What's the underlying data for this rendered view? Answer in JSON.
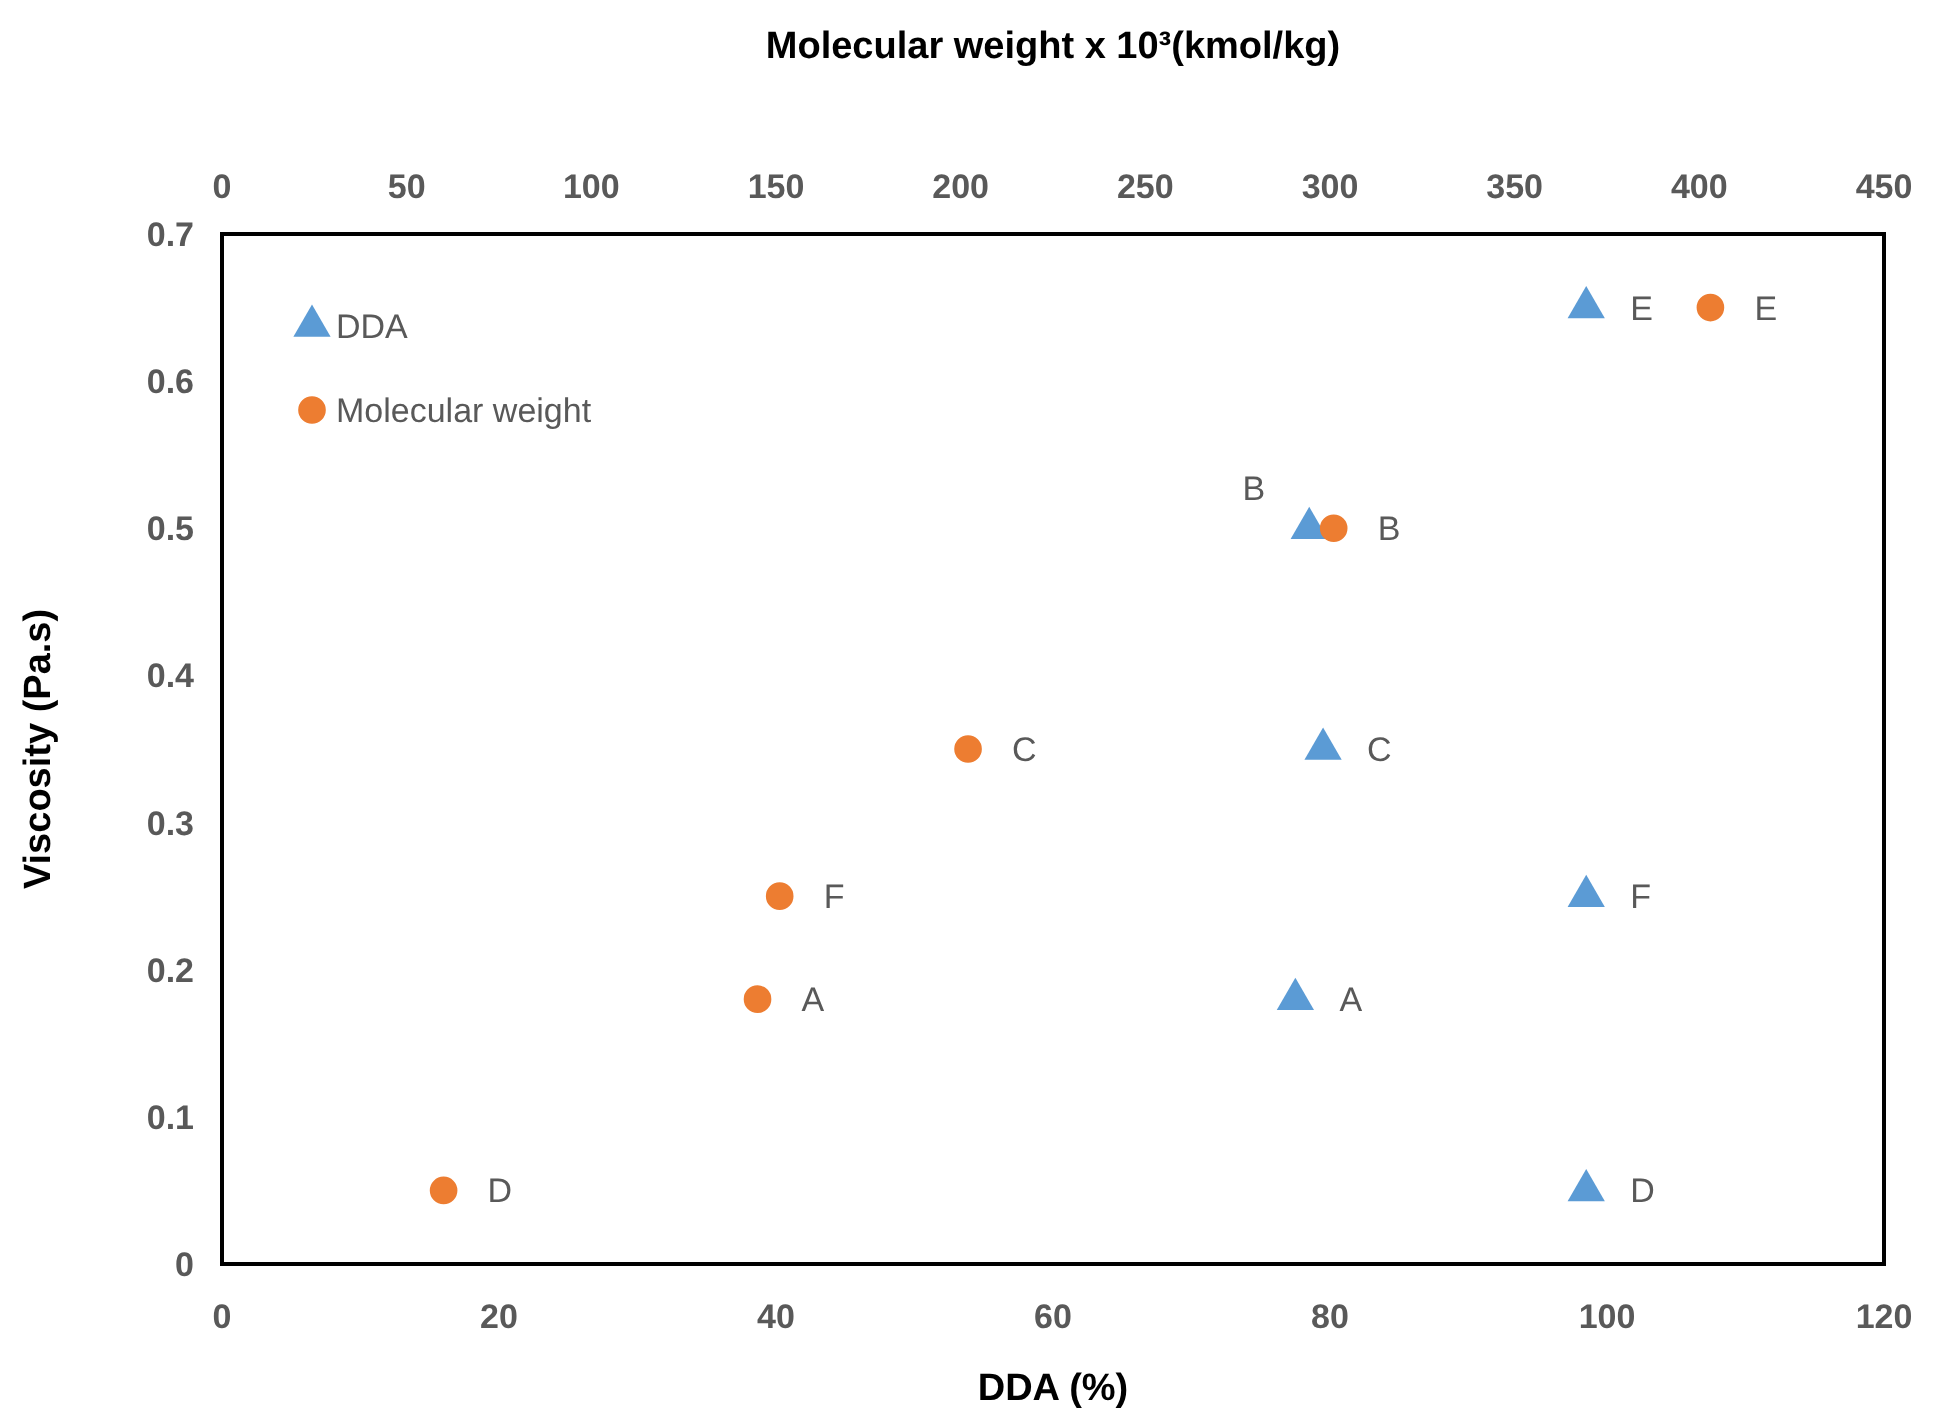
{
  "chart_data": {
    "type": "scatter",
    "xlabel": "DDA (%)",
    "x2label": "Molecular weight x 10³(kmol/kg)",
    "ylabel": "Viscosity (Pa.s)",
    "xlim": [
      0,
      120
    ],
    "xticks": [
      0,
      20,
      40,
      60,
      80,
      100,
      120
    ],
    "x2lim": [
      0,
      450
    ],
    "x2ticks": [
      0,
      50,
      100,
      150,
      200,
      250,
      300,
      350,
      400,
      450
    ],
    "ylim": [
      0,
      0.7
    ],
    "yticks": [
      0,
      0.1,
      0.2,
      0.3,
      0.4,
      0.5,
      0.6,
      0.7
    ],
    "grid": false,
    "legend": "top left",
    "series": [
      {
        "name": "DDA",
        "color": "#5b9bd5",
        "marker": "triangle",
        "x": [
          77.5,
          78.5,
          79.5,
          98.5,
          98.5,
          98.5
        ],
        "values": [
          0.18,
          0.5,
          0.35,
          0.05,
          0.65,
          0.25
        ],
        "value_labels": [
          "A",
          "B",
          "C",
          "D",
          "E",
          "F"
        ]
      },
      {
        "name": "Molecular weight",
        "color": "#ed7d31",
        "marker": "circle",
        "axis": "x2",
        "x": [
          145,
          301,
          202,
          60,
          403,
          151
        ],
        "values": [
          0.18,
          0.5,
          0.35,
          0.05,
          0.65,
          0.25
        ],
        "value_labels": [
          "A",
          "B",
          "C",
          "D",
          "E",
          "F"
        ]
      }
    ]
  }
}
